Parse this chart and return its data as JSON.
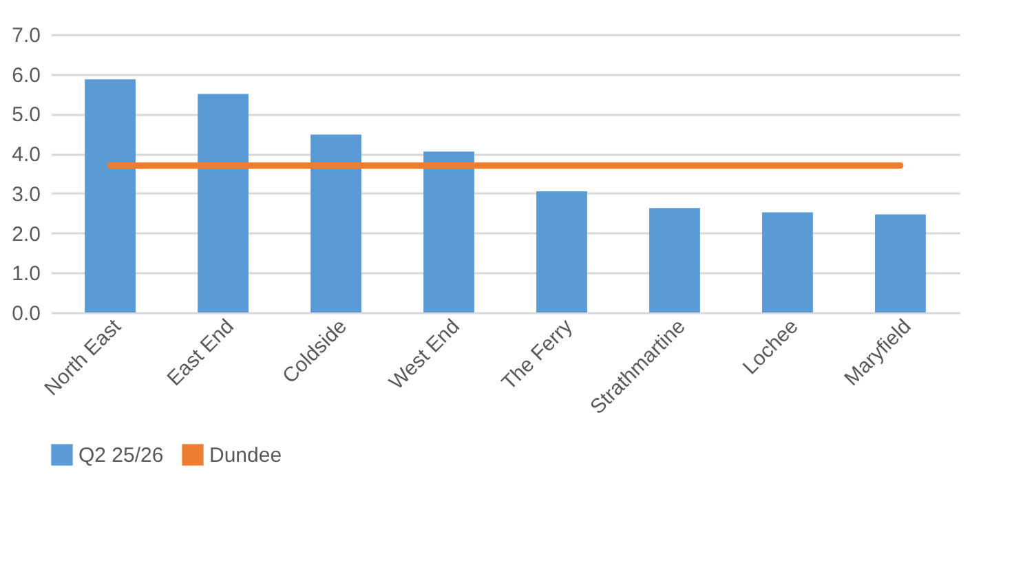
{
  "chart_data": {
    "type": "bar",
    "categories": [
      "North East",
      "East End",
      "Coldside",
      "West End",
      "The Ferry",
      "Strathmartine",
      "Lochee",
      "Maryfield"
    ],
    "series": [
      {
        "name": "Q2 25/26",
        "color": "#5b9bd5",
        "values": [
          5.87,
          5.5,
          4.48,
          4.05,
          3.05,
          2.63,
          2.52,
          2.47
        ]
      },
      {
        "name": "Dundee",
        "type": "line",
        "color": "#ed7d31",
        "values": [
          3.7,
          3.7,
          3.7,
          3.7,
          3.7,
          3.7,
          3.7,
          3.7
        ]
      }
    ],
    "ylim": [
      0,
      7
    ],
    "yticks": [
      {
        "value": 0,
        "label": "0.0"
      },
      {
        "value": 1,
        "label": "1.0"
      },
      {
        "value": 2,
        "label": "2.0"
      },
      {
        "value": 3,
        "label": "3.0"
      },
      {
        "value": 4,
        "label": "4.0"
      },
      {
        "value": 5,
        "label": "5.0"
      },
      {
        "value": 6,
        "label": "6.0"
      },
      {
        "value": 7,
        "label": "7.0"
      }
    ],
    "grid": "y",
    "legend": "bottom"
  }
}
